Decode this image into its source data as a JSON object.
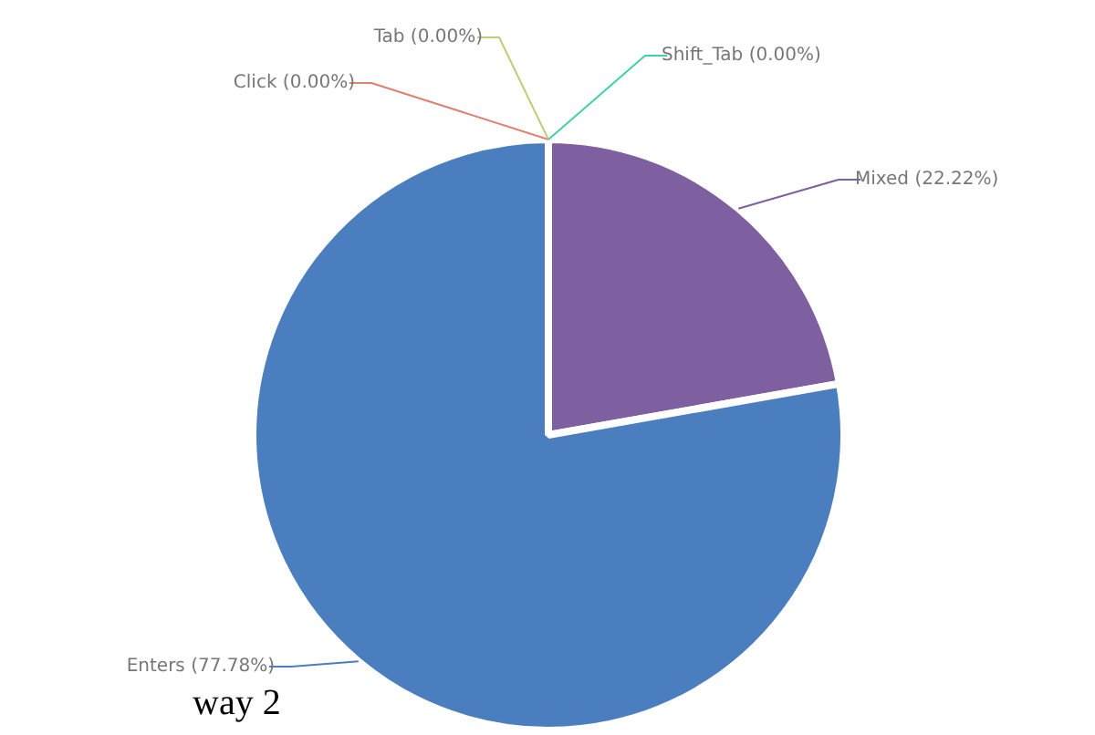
{
  "chart_data": {
    "type": "pie",
    "categories": [
      "Mixed",
      "Enters",
      "Click",
      "Tab",
      "Shift_Tab"
    ],
    "values": [
      22.22,
      77.78,
      0,
      0,
      0
    ],
    "value_labels": [
      "(22.22%)",
      "(77.78%)",
      "(0.00%)",
      "(0.00%)",
      "(0.00%)"
    ],
    "colors": [
      "#7e5fa0",
      "#4a7ebf",
      "#e08070",
      "#c8c878",
      "#40d0b0"
    ],
    "annotations": [
      "way 2"
    ]
  }
}
